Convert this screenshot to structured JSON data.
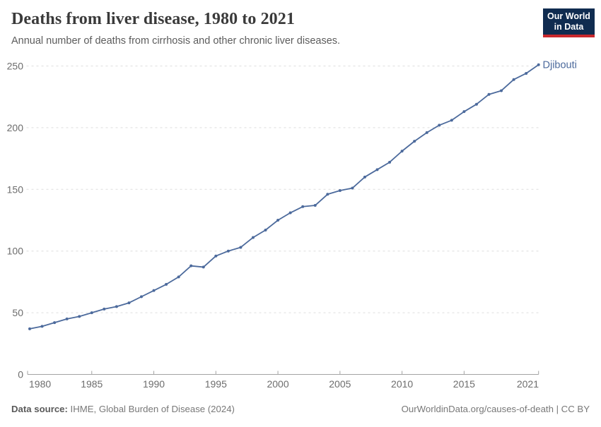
{
  "header": {
    "title": "Deaths from liver disease, 1980 to 2021",
    "subtitle": "Annual number of deaths from cirrhosis and other chronic liver diseases."
  },
  "logo": {
    "line1": "Our World",
    "line2": "in Data",
    "bg_color": "#102c50",
    "accent_color": "#c9282d"
  },
  "entity_label": "Djibouti",
  "footer": {
    "source_label": "Data source:",
    "source_text": " IHME, Global Burden of Disease (2024)",
    "credit": "OurWorldinData.org/causes-of-death | CC BY"
  },
  "colors": {
    "line": "#4c6a9c",
    "entity_label": "#4c6a9c",
    "grid": "#dedede",
    "axis": "#a3a3a3",
    "tick_text": "#6d6d6d"
  },
  "chart_data": {
    "type": "line",
    "title": "Deaths from liver disease, 1980 to 2021",
    "xlabel": "",
    "ylabel": "",
    "grid": "horizontal-dashed",
    "legend_position": "end-of-line-label",
    "xlim": [
      1980,
      2021
    ],
    "ylim": [
      0,
      250
    ],
    "x_ticks": [
      1980,
      1985,
      1990,
      1995,
      2000,
      2005,
      2010,
      2015,
      2021
    ],
    "y_ticks": [
      0,
      50,
      100,
      150,
      200,
      250
    ],
    "series": [
      {
        "name": "Djibouti",
        "x": [
          1980,
          1981,
          1982,
          1983,
          1984,
          1985,
          1986,
          1987,
          1988,
          1989,
          1990,
          1991,
          1992,
          1993,
          1994,
          1995,
          1996,
          1997,
          1998,
          1999,
          2000,
          2001,
          2002,
          2003,
          2004,
          2005,
          2006,
          2007,
          2008,
          2009,
          2010,
          2011,
          2012,
          2013,
          2014,
          2015,
          2016,
          2017,
          2018,
          2019,
          2020,
          2021
        ],
        "values": [
          37,
          39,
          42,
          45,
          47,
          50,
          53,
          55,
          58,
          63,
          68,
          73,
          79,
          88,
          87,
          96,
          100,
          103,
          111,
          117,
          125,
          131,
          136,
          137,
          146,
          149,
          151,
          160,
          166,
          172,
          181,
          189,
          196,
          202,
          206,
          213,
          219,
          227,
          230,
          239,
          244,
          251
        ]
      }
    ]
  }
}
